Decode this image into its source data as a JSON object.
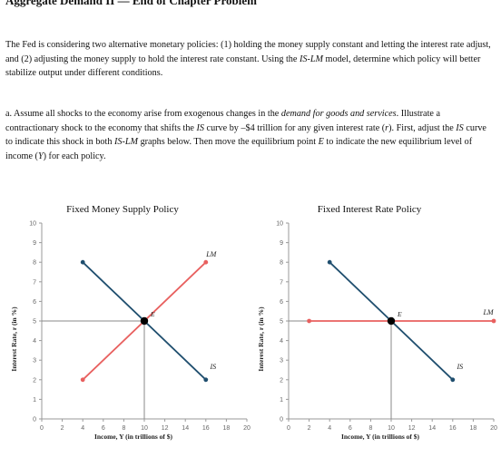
{
  "header": {
    "title": "Aggregate Demand II — End of Chapter Problem"
  },
  "intro": {
    "t1": "The Fed is considering two alternative monetary policies: (1) holding the money supply constant and letting the interest rate adjust, and (2) adjusting the money supply to hold the interest rate constant. Using the ",
    "t2": "IS-LM",
    "t3": " model, determine which policy will better stabilize output under different conditions."
  },
  "part_a": {
    "t1": "a. Assume all shocks to the economy arise from exogenous changes in the ",
    "t2": "demand for goods and services",
    "t3": ". Illustrate a contractionary shock to the economy that shifts the ",
    "t4": "IS",
    "t5": " curve by –$4 trillion for any given interest rate (",
    "t6": "r",
    "t7": "). First, adjust the ",
    "t8": "IS",
    "t9": " curve to indicate this shock in both ",
    "t10": "IS-LM",
    "t11": " graphs below. Then move the equilibrium point ",
    "t12": "E",
    "t13": " to indicate the new equilibrium level of income (",
    "t14": "Y",
    "t15": ") for each policy."
  },
  "colors": {
    "is_curve": "#1f4e6e",
    "lm_curve": "#e8605f",
    "axis": "#999999",
    "point": "#000000"
  },
  "chart_data": [
    {
      "type": "line",
      "title": "Fixed Money Supply Policy",
      "xlabel": "Income, Y (in trillions of $)",
      "ylabel": "Interest Rate, r (in %)",
      "xlim": [
        0,
        20
      ],
      "ylim": [
        0,
        10
      ],
      "x_ticks": [
        "0",
        "2",
        "4",
        "6",
        "8",
        "10",
        "12",
        "14",
        "16",
        "18",
        "20"
      ],
      "y_ticks": [
        "0",
        "1",
        "2",
        "3",
        "4",
        "5",
        "6",
        "7",
        "8",
        "9",
        "10"
      ],
      "series": [
        {
          "name": "IS",
          "color": "#1f4e6e",
          "points": [
            [
              4,
              8
            ],
            [
              16,
              2
            ]
          ]
        },
        {
          "name": "LM",
          "color": "#e8605f",
          "points": [
            [
              4,
              2
            ],
            [
              16,
              8
            ]
          ]
        }
      ],
      "point": {
        "label": "E",
        "x": 10,
        "y": 5
      }
    },
    {
      "type": "line",
      "title": "Fixed Interest Rate Policy",
      "xlabel": "Income, Y (in trillions of $)",
      "ylabel": "Interest Rate, r (in %)",
      "xlim": [
        0,
        20
      ],
      "ylim": [
        0,
        10
      ],
      "x_ticks": [
        "0",
        "2",
        "4",
        "6",
        "8",
        "10",
        "12",
        "14",
        "16",
        "18",
        "20"
      ],
      "y_ticks": [
        "0",
        "1",
        "2",
        "3",
        "4",
        "5",
        "6",
        "7",
        "8",
        "9",
        "10"
      ],
      "series": [
        {
          "name": "IS",
          "color": "#1f4e6e",
          "points": [
            [
              4,
              8
            ],
            [
              16,
              2
            ]
          ]
        },
        {
          "name": "LM",
          "color": "#e8605f",
          "points": [
            [
              2,
              5
            ],
            [
              20,
              5
            ]
          ]
        }
      ],
      "point": {
        "label": "E",
        "x": 10,
        "y": 5
      }
    }
  ]
}
